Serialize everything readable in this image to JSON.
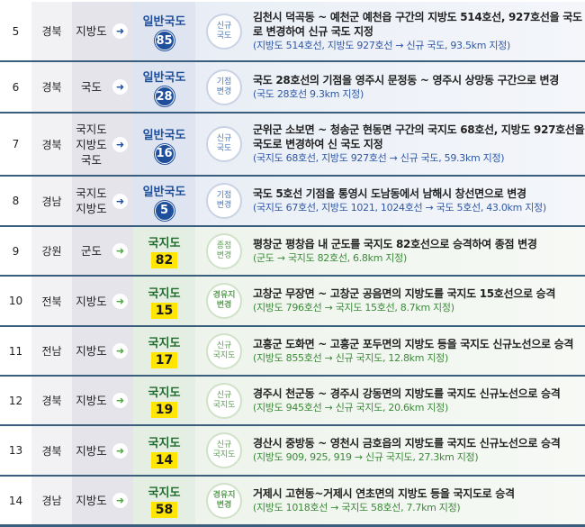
{
  "arrow_icon": "right-arrow",
  "colors": {
    "blue": "#1f4e9a",
    "green": "#3c8a3a",
    "yellow": "#ffe500",
    "rule": "#3a5f7e"
  },
  "rows": [
    {
      "no": "5",
      "region": "경북",
      "from": "지방도",
      "to_label": "일반국도",
      "to_num": "85",
      "kind": "blue",
      "badge": "신규\n국도",
      "main": "김천시 덕곡동 ~ 예천군 예천읍 구간의 지방도 514호선, 927호선을 국도로 변경하여 신규 국도 지정",
      "sub": "(지방도 514호선, 지방도 927호선 → 신규 국도, 93.5km 지정)"
    },
    {
      "no": "6",
      "region": "경북",
      "from": "국도",
      "to_label": "일반국도",
      "to_num": "28",
      "kind": "blue",
      "badge": "기점\n변경",
      "main": "국도 28호선의 기점을 영주시 문정동 ~ 영주시 상망동 구간으로 변경",
      "sub": "(국도 28호선 9.3km 지정)"
    },
    {
      "no": "7",
      "region": "경북",
      "from": "국지도\n지방도\n국도",
      "to_label": "일반국도",
      "to_num": "16",
      "kind": "blue",
      "badge": "신규\n국도",
      "main": "군위군 소보면 ~ 청송군 현동면 구간의 국지도 68호선, 지방도 927호선을 국도로 변경하여 신 국도 지정",
      "sub": "(국지도 68호선, 지방도 927호선 → 신규 국도, 59.3km 지정)"
    },
    {
      "no": "8",
      "region": "경남",
      "from": "국지도\n지방도",
      "to_label": "일반국도",
      "to_num": "5",
      "kind": "blue",
      "badge": "기점\n변경",
      "main": "국도 5호선 기점을 통영시 도남동에서 남해시 창선면으로 변경",
      "sub": "(국지도 67호선, 지방도 1021, 1024호선 → 국도 5호선, 43.0km 지정)"
    },
    {
      "no": "9",
      "region": "강원",
      "from": "군도",
      "to_label": "국지도",
      "to_num": "82",
      "kind": "green",
      "badge": "종점\n변경",
      "main": "평창군 평창읍 내 군도를 국지도 82호선으로 승격하여 종점 변경",
      "sub": "(군도 → 국지도 82호선, 6.8km 지정)"
    },
    {
      "no": "10",
      "region": "전북",
      "from": "지방도",
      "to_label": "국지도",
      "to_num": "15",
      "kind": "green",
      "badge": "경유지\n변경",
      "strong": true,
      "main": "고창군 무장면 ~ 고창군 공음면의 지방도를 국지도 15호선으로 승격",
      "sub": "(지방도 796호선 → 국지도 15호선, 8.7km 지정)"
    },
    {
      "no": "11",
      "region": "전남",
      "from": "지방도",
      "to_label": "국지도",
      "to_num": "17",
      "kind": "green",
      "badge": "신규\n국지도",
      "main": "고흥군 도화면 ~ 고흥군 포두면의 지방도 등을 국지도 신규노선으로 승격",
      "sub": "(지방도 855호선 → 신규 국지도, 12.8km 지정)"
    },
    {
      "no": "12",
      "region": "경북",
      "from": "지방도",
      "to_label": "국지도",
      "to_num": "19",
      "kind": "green",
      "badge": "신규\n국지도",
      "main": "경주시 천군동 ~ 경주시 강동면의 지방도를 국지도 신규노선으로 승격",
      "sub": "(지방도 945호선 → 신규 국지도, 20.6km 지정)"
    },
    {
      "no": "13",
      "region": "경북",
      "from": "지방도",
      "to_label": "국지도",
      "to_num": "14",
      "kind": "green",
      "badge": "신규\n국지도",
      "main": "경산시 중방동 ~ 영천시 금호읍의 지방도를 국지도 신규노선으로 승격",
      "sub": "(지방도 909, 925, 919 → 신규 국지도, 27.3km 지정)"
    },
    {
      "no": "14",
      "region": "경남",
      "from": "지방도",
      "to_label": "국지도",
      "to_num": "58",
      "kind": "green",
      "badge": "경유지\n변경",
      "strong": true,
      "main": "거제시 고현동~거제시 연초면의 지방도 등을 국지도로 승격",
      "sub": "(지방도 1018호선 → 국지도 58호선, 7.7km 지정)"
    }
  ]
}
